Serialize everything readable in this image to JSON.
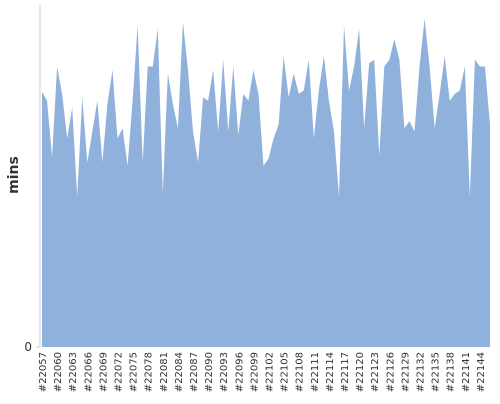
{
  "chart_data": {
    "type": "area",
    "y_label": "mins",
    "categories": [
      "#22057",
      null,
      null,
      "#22060",
      null,
      null,
      "#22063",
      null,
      null,
      "#22066",
      null,
      null,
      "#22069",
      null,
      null,
      "#22072",
      null,
      null,
      "#22075",
      null,
      null,
      "#22078",
      null,
      null,
      "#22081",
      null,
      null,
      "#22084",
      null,
      null,
      "#22087",
      null,
      null,
      "#22090",
      null,
      null,
      "#22093",
      null,
      null,
      "#22096",
      null,
      null,
      "#22099",
      null,
      null,
      "#22102",
      null,
      null,
      "#22105",
      null,
      null,
      "#22108",
      null,
      null,
      "#22111",
      null,
      null,
      "#22114",
      null,
      null,
      "#22117",
      null,
      null,
      "#22120",
      null,
      null,
      "#22123",
      null,
      null,
      "#22126",
      null,
      null,
      "#22129",
      null,
      null,
      "#22132",
      null,
      null,
      "#22135",
      null,
      null,
      "#22138",
      null,
      null,
      "#22141",
      null,
      null,
      "#22144",
      null,
      null
    ],
    "values": [
      74.6,
      72,
      55.6,
      82,
      74,
      61,
      70,
      44,
      73,
      54,
      63,
      72,
      54,
      71,
      81,
      61,
      64,
      53,
      72,
      94,
      54,
      82,
      82,
      93,
      45,
      80,
      71,
      64,
      95,
      81,
      63,
      54,
      73,
      72,
      81,
      63,
      84,
      63,
      82,
      62,
      74,
      72,
      81,
      74,
      53,
      55,
      61,
      65,
      85,
      73,
      80,
      74,
      75,
      84,
      61,
      75,
      85,
      72,
      63,
      44,
      94,
      75,
      82,
      93,
      64,
      83,
      84,
      56,
      82,
      84,
      90,
      84,
      64,
      66,
      63,
      82,
      96,
      82,
      64,
      74,
      85,
      72,
      74,
      75,
      82,
      44,
      84,
      82,
      82,
      65
    ],
    "color": "#8fb1db",
    "ylim": [
      0,
      100
    ],
    "yticks": [
      0
    ]
  }
}
